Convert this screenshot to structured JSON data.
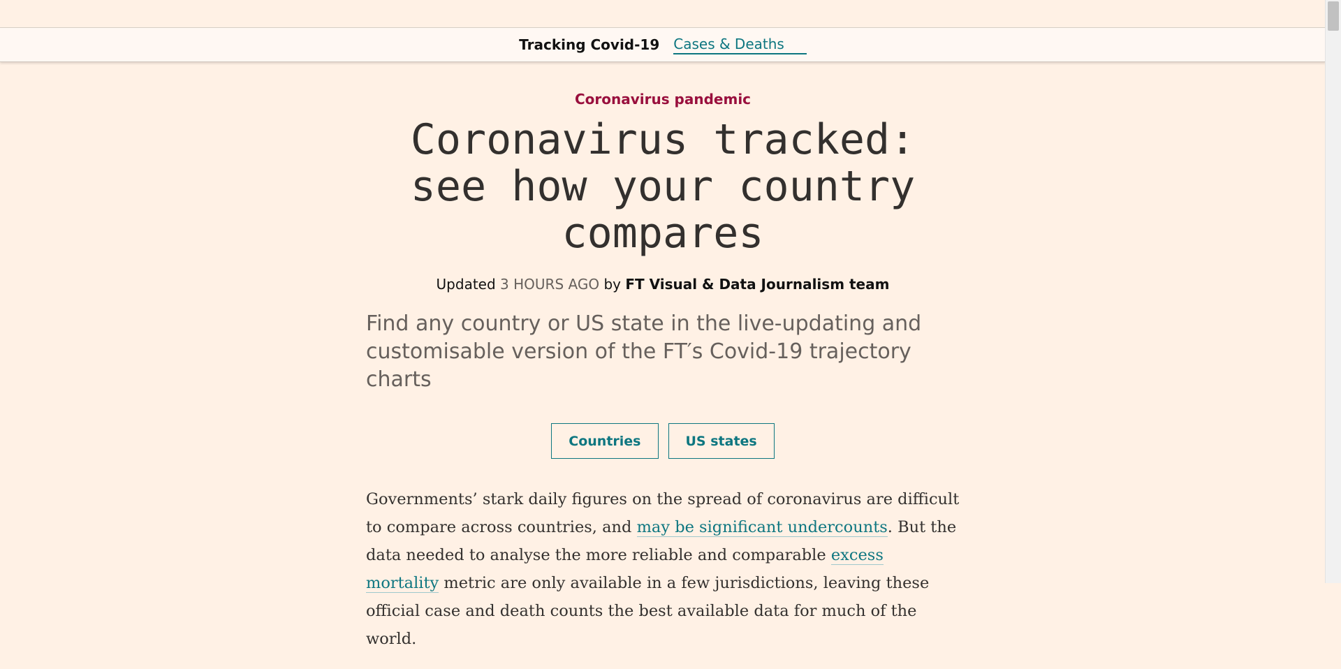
{
  "subnav": {
    "title": "Tracking Covid-19",
    "link": "Cases & Deaths"
  },
  "article": {
    "kicker": "Coronavirus pandemic",
    "headline": "Coronavirus tracked: see how your country compares",
    "byline": {
      "updated_label": "Updated",
      "time_ago": "3 hours ago",
      "by": "by",
      "author": "FT Visual & Data Journalism team"
    },
    "standfirst": "Find any country or US state in the live-updating and customisable version of the FT′s Covid-19 trajectory charts",
    "buttons": {
      "countries": "Countries",
      "us_states": "US states"
    },
    "body": {
      "part1": "Governments’ stark daily figures on the spread of coronavirus are difficult to compare across countries, and ",
      "link1": "may be significant undercounts",
      "part2": ". But the data needed to analyse the more reliable and comparable ",
      "link2": "excess mortality",
      "part3": " metric are only available in a few jurisdictions, leaving these official case and death counts the best available data for much of the world."
    }
  },
  "colors": {
    "background": "#fff1e5",
    "accent": "#0d7680",
    "kicker": "#990f3d"
  }
}
